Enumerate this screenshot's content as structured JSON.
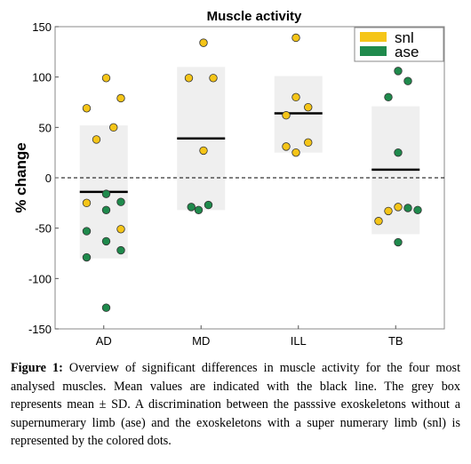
{
  "chart_data": {
    "type": "scatter",
    "title": "Muscle activity",
    "xlabel": "",
    "ylabel": "% change",
    "categories": [
      "AD",
      "MD",
      "ILL",
      "TB"
    ],
    "ylim": [
      -150,
      150
    ],
    "yticks": [
      150,
      100,
      50,
      0,
      -50,
      -100,
      -150
    ],
    "zero_line": "dashed",
    "grid": false,
    "legend_position": "top-right",
    "mean_sd": [
      {
        "category": "AD",
        "mean": -14,
        "sd_low": -80,
        "sd_high": 52
      },
      {
        "category": "MD",
        "mean": 39,
        "sd_low": -32,
        "sd_high": 110
      },
      {
        "category": "ILL",
        "mean": 64,
        "sd_low": 25,
        "sd_high": 101
      },
      {
        "category": "TB",
        "mean": 8,
        "sd_low": -56,
        "sd_high": 71
      }
    ],
    "series": [
      {
        "name": "snl",
        "color": "#f5c518",
        "points": [
          {
            "x": "AD",
            "offset": -0.35,
            "y": 69
          },
          {
            "x": "AD",
            "offset": -0.15,
            "y": 38
          },
          {
            "x": "AD",
            "offset": 0.05,
            "y": 99
          },
          {
            "x": "AD",
            "offset": 0.2,
            "y": 50
          },
          {
            "x": "AD",
            "offset": 0.35,
            "y": 79
          },
          {
            "x": "AD",
            "offset": -0.35,
            "y": -25
          },
          {
            "x": "AD",
            "offset": 0.35,
            "y": -51
          },
          {
            "x": "MD",
            "offset": -0.25,
            "y": 99
          },
          {
            "x": "MD",
            "offset": 0.05,
            "y": 134
          },
          {
            "x": "MD",
            "offset": 0.25,
            "y": 99
          },
          {
            "x": "MD",
            "offset": 0.05,
            "y": 27
          },
          {
            "x": "ILL",
            "offset": -0.05,
            "y": 139
          },
          {
            "x": "ILL",
            "offset": -0.05,
            "y": 80
          },
          {
            "x": "ILL",
            "offset": 0.2,
            "y": 70
          },
          {
            "x": "ILL",
            "offset": -0.25,
            "y": 62
          },
          {
            "x": "ILL",
            "offset": -0.25,
            "y": 31
          },
          {
            "x": "ILL",
            "offset": -0.05,
            "y": 25
          },
          {
            "x": "ILL",
            "offset": 0.2,
            "y": 35
          },
          {
            "x": "TB",
            "offset": -0.35,
            "y": -43
          },
          {
            "x": "TB",
            "offset": -0.15,
            "y": -33
          },
          {
            "x": "TB",
            "offset": 0.05,
            "y": -29
          }
        ]
      },
      {
        "name": "ase",
        "color": "#1f8a4c",
        "points": [
          {
            "x": "AD",
            "offset": 0.05,
            "y": -16
          },
          {
            "x": "AD",
            "offset": 0.05,
            "y": -32
          },
          {
            "x": "AD",
            "offset": 0.35,
            "y": -24
          },
          {
            "x": "AD",
            "offset": -0.35,
            "y": -53
          },
          {
            "x": "AD",
            "offset": 0.05,
            "y": -63
          },
          {
            "x": "AD",
            "offset": 0.35,
            "y": -72
          },
          {
            "x": "AD",
            "offset": -0.35,
            "y": -79
          },
          {
            "x": "AD",
            "offset": 0.05,
            "y": -129
          },
          {
            "x": "MD",
            "offset": -0.2,
            "y": -29
          },
          {
            "x": "MD",
            "offset": -0.05,
            "y": -32
          },
          {
            "x": "MD",
            "offset": 0.15,
            "y": -27
          },
          {
            "x": "TB",
            "offset": 0.05,
            "y": 106
          },
          {
            "x": "TB",
            "offset": -0.15,
            "y": 80
          },
          {
            "x": "TB",
            "offset": 0.25,
            "y": 96
          },
          {
            "x": "TB",
            "offset": 0.05,
            "y": 25
          },
          {
            "x": "TB",
            "offset": 0.25,
            "y": -30
          },
          {
            "x": "TB",
            "offset": 0.45,
            "y": -32
          },
          {
            "x": "TB",
            "offset": 0.05,
            "y": -64
          }
        ]
      }
    ]
  },
  "caption": {
    "label": "Figure 1:",
    "text": " Overview of significant differences in muscle activity for the four most analysed muscles. Mean values are indicated with the black line. The grey box represents mean ± SD. A discrimination between the passsive exoskeletons without a supernumerary limb (ase) and the exoskeletons with a super numerary limb (snl) is represented by the colored dots."
  }
}
